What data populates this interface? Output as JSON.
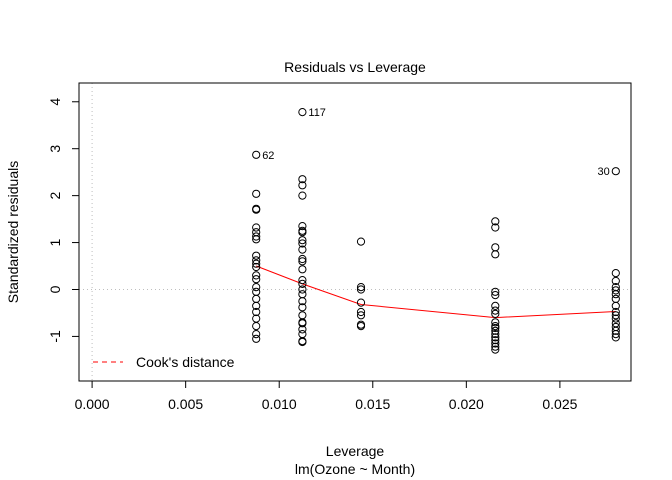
{
  "chart_data": {
    "type": "scatter",
    "title": "Residuals vs Leverage",
    "xlabel": "Leverage",
    "sublabel": "lm(Ozone ~ Month)",
    "ylabel": "Standardized residuals",
    "xlim": [
      -0.0007,
      0.0288
    ],
    "ylim": [
      -1.95,
      4.4
    ],
    "x_ticks": [
      {
        "value": 0.0,
        "label": "0.000"
      },
      {
        "value": 0.005,
        "label": "0.005"
      },
      {
        "value": 0.01,
        "label": "0.010"
      },
      {
        "value": 0.015,
        "label": "0.015"
      },
      {
        "value": 0.02,
        "label": "0.020"
      },
      {
        "value": 0.025,
        "label": "0.025"
      }
    ],
    "y_ticks": [
      {
        "value": -1,
        "label": "-1"
      },
      {
        "value": 0,
        "label": "0"
      },
      {
        "value": 1,
        "label": "1"
      },
      {
        "value": 2,
        "label": "2"
      },
      {
        "value": 3,
        "label": "3"
      },
      {
        "value": 4,
        "label": "4"
      }
    ],
    "reference_lines": {
      "h": 0,
      "v": 0
    },
    "groups": [
      {
        "leverage": 0.00877,
        "residuals": [
          2.87,
          2.04,
          1.72,
          1.7,
          1.32,
          1.22,
          1.13,
          1.07,
          0.72,
          0.62,
          0.55,
          0.48,
          0.3,
          0.22,
          0.05,
          -0.05,
          -0.2,
          -0.35,
          -0.48,
          -0.62,
          -0.78,
          -0.95,
          -1.05
        ]
      },
      {
        "leverage": 0.01124,
        "residuals": [
          3.78,
          2.35,
          2.22,
          2.0,
          1.35,
          1.25,
          1.22,
          1.05,
          0.98,
          0.85,
          0.65,
          0.6,
          0.43,
          0.2,
          0.12,
          0.0,
          -0.1,
          -0.25,
          -0.38,
          -0.55,
          -0.7,
          -0.72,
          -0.85,
          -0.95,
          -1.1,
          -1.12
        ]
      },
      {
        "leverage": 0.01437,
        "residuals": [
          1.02,
          0.05,
          0.0,
          -0.28,
          -0.48,
          -0.55,
          -0.75,
          -0.78
        ]
      },
      {
        "leverage": 0.02155,
        "residuals": [
          1.45,
          1.32,
          0.9,
          0.75,
          -0.05,
          -0.12,
          -0.35,
          -0.45,
          -0.52,
          -0.7,
          -0.78,
          -0.82,
          -0.88,
          -0.95,
          -1.02,
          -1.08,
          -1.15,
          -1.22,
          -1.28
        ]
      },
      {
        "leverage": 0.02799,
        "residuals": [
          2.52,
          0.35,
          0.18,
          0.05,
          -0.02,
          -0.1,
          -0.2,
          -0.35,
          -0.48,
          -0.55,
          -0.62,
          -0.72,
          -0.8,
          -0.88,
          -0.95,
          -1.02
        ]
      }
    ],
    "labeled_points": [
      {
        "label": "117",
        "x": 0.01124,
        "y": 3.78,
        "side": "right"
      },
      {
        "label": "62",
        "x": 0.00877,
        "y": 2.87,
        "side": "right"
      },
      {
        "label": "30",
        "x": 0.02799,
        "y": 2.52,
        "side": "left"
      }
    ],
    "smoother": {
      "color": "#ff0000",
      "x": [
        0.00877,
        0.01124,
        0.01437,
        0.02155,
        0.02799
      ],
      "y": [
        0.5,
        0.12,
        -0.32,
        -0.6,
        -0.47
      ]
    },
    "legend": {
      "entry": "Cook's distance",
      "color": "#ff0000",
      "position": "bottom-left"
    }
  }
}
